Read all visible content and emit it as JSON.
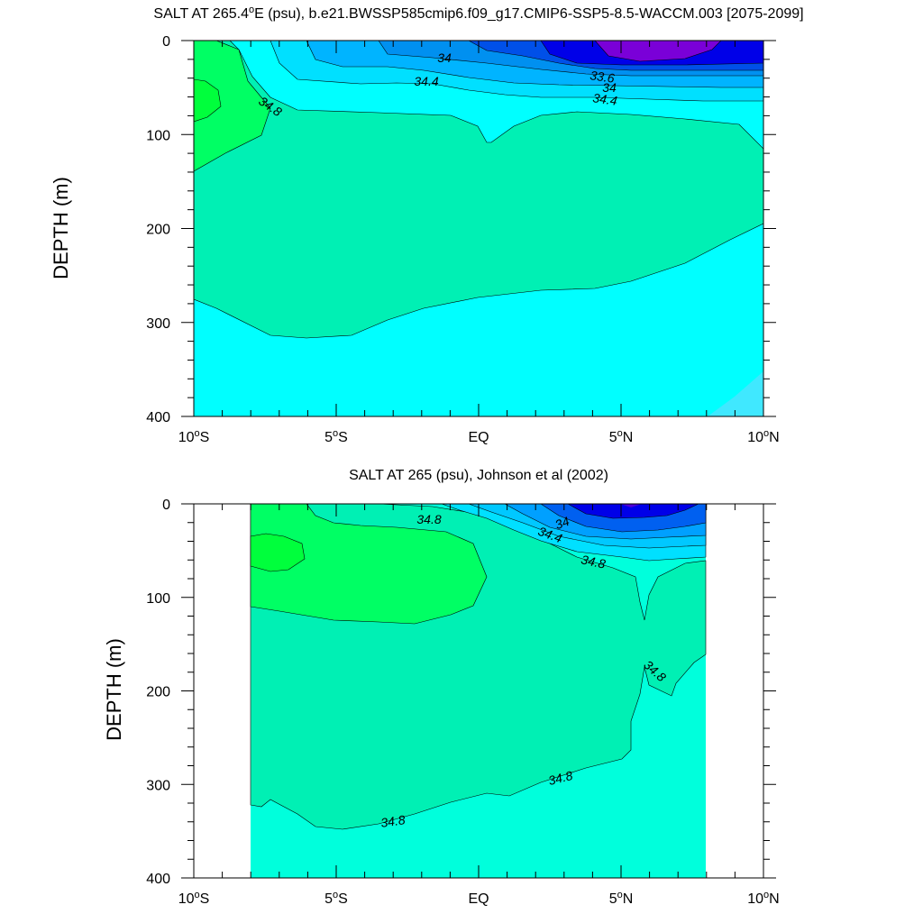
{
  "chart_data": [
    {
      "type": "heatmap",
      "title": "SALT AT 265.4°E (psu), b.e21.BWSSP585cmip6.f09_g17.CMIP6-SSP5-8.5-WACCM.003 [2075-2099]",
      "title_parts": {
        "before": "SALT AT 265.4",
        "deg": "o",
        "after": "E (psu), b.e21.BWSSP585cmip6.f09_g17.CMIP6-SSP5-8.5-WACCM.003 [2075-2099]"
      },
      "ylabel": "DEPTH (m)",
      "xlim": [
        -10,
        10
      ],
      "ylim": [
        400,
        0
      ],
      "x_ticks": [
        {
          "value": -10,
          "num": "10",
          "deg": "o",
          "hemi": "S"
        },
        {
          "value": -5,
          "num": "5",
          "deg": "o",
          "hemi": "S"
        },
        {
          "value": 0,
          "num": "EQ",
          "deg": "",
          "hemi": ""
        },
        {
          "value": 5,
          "num": "5",
          "deg": "o",
          "hemi": "N"
        },
        {
          "value": 10,
          "num": "10",
          "deg": "o",
          "hemi": "N"
        }
      ],
      "y_ticks": [
        "0",
        "100",
        "200",
        "300",
        "400"
      ],
      "contour_labels": [
        "34",
        "34.4",
        "34.8",
        "33.6",
        "34",
        "34.4"
      ],
      "data_extent_lat": [
        -10,
        10
      ],
      "salinity_fields": [
        {
          "level": "<33.4",
          "color": "#7a00d8",
          "region": "surface core near 5-7°N, 0-20 m"
        },
        {
          "level": "33.4-33.8",
          "color": "#0000e8",
          "region": "north surface layer, 0-40 m"
        },
        {
          "level": "34.0-34.2",
          "color": "#00c8ff",
          "region": "surface, 0-5°N"
        },
        {
          "level": "34.4-34.6",
          "color": "#00ffff",
          "region": "upper ocean and below 250 m"
        },
        {
          "level": "34.6-34.8",
          "color": "#00f0b4",
          "region": "thermocline 70-300 m"
        },
        {
          "level": ">34.8",
          "color": "#00ff64",
          "region": "core near 10°S, 70-120 m"
        }
      ]
    },
    {
      "type": "heatmap",
      "title": "SALT AT 265 (psu), Johnson et al (2002)",
      "ylabel": "DEPTH (m)",
      "xlim": [
        -10,
        10
      ],
      "ylim": [
        400,
        0
      ],
      "x_ticks": [
        {
          "value": -10,
          "num": "10",
          "deg": "o",
          "hemi": "S"
        },
        {
          "value": -5,
          "num": "5",
          "deg": "o",
          "hemi": "S"
        },
        {
          "value": 0,
          "num": "EQ",
          "deg": "",
          "hemi": ""
        },
        {
          "value": 5,
          "num": "5",
          "deg": "o",
          "hemi": "N"
        },
        {
          "value": 10,
          "num": "10",
          "deg": "o",
          "hemi": "N"
        }
      ],
      "y_ticks": [
        "0",
        "100",
        "200",
        "300",
        "400"
      ],
      "contour_labels": [
        "34.8",
        "34",
        "34.4",
        "34.8",
        "34.8",
        "34.8",
        "34.8"
      ],
      "data_extent_lat": [
        -8,
        8
      ],
      "salinity_fields": [
        {
          "level": "<33.6",
          "color": "#0000e8",
          "region": "surface near 5°N"
        },
        {
          "level": "34.0-34.4",
          "color": "#00a0ff",
          "region": "surface 0-8°N"
        },
        {
          "level": "34.6-34.8",
          "color": "#00f0b4",
          "region": "thermocline"
        },
        {
          "level": ">35.0",
          "color": "#00ff3c",
          "region": "core near 7°S, 40-70 m"
        },
        {
          "level": "34.4-34.6",
          "color": "#00ffdc",
          "region": "deep layer below 300 m"
        }
      ]
    }
  ]
}
